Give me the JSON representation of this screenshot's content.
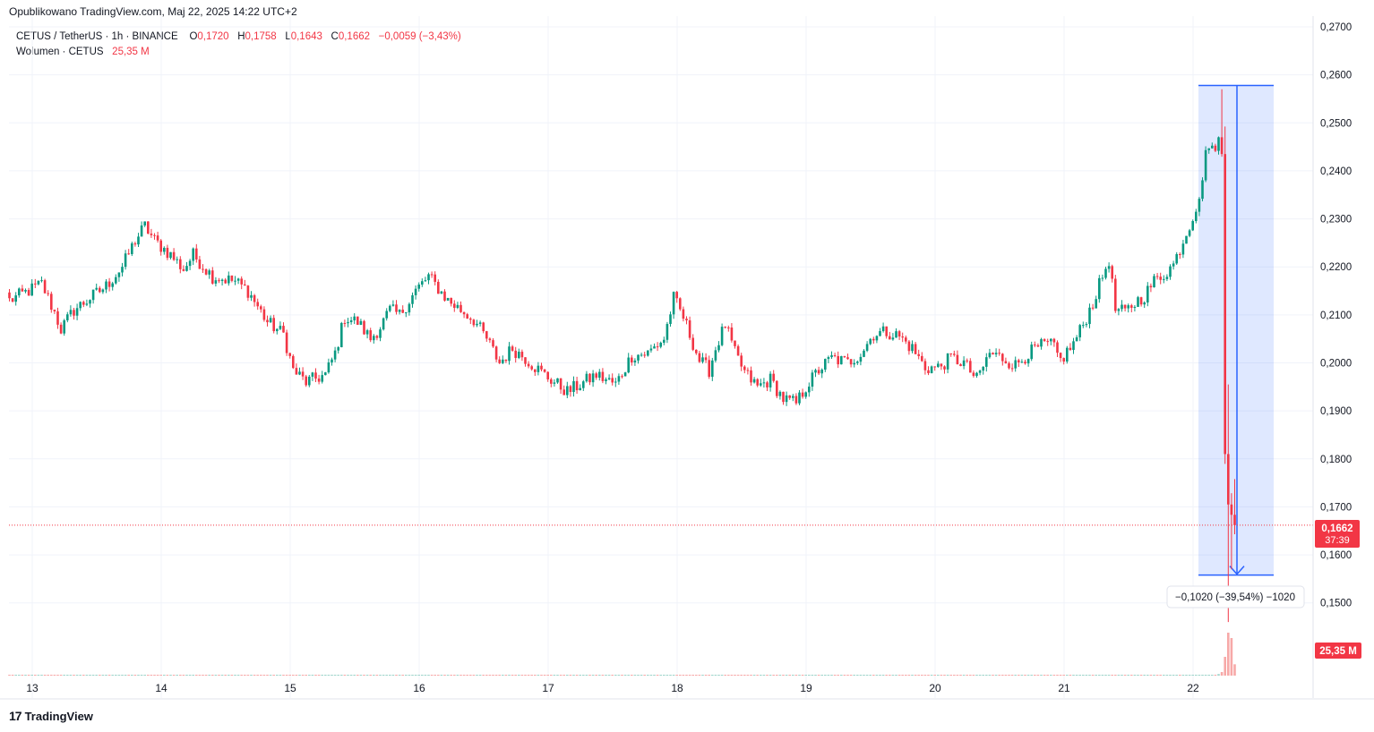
{
  "header": {
    "published": "Opublikowano TradingView.com, Maj 22, 2025 14:22 UTC+2"
  },
  "legend": {
    "symbol": "CETUS / TetherUS · 1h · BINANCE",
    "o_label": "O",
    "o_value": "0,1720",
    "h_label": "H",
    "h_value": "0,1758",
    "l_label": "L",
    "l_value": "0,1643",
    "c_label": "C",
    "c_value": "0,1662",
    "change": "−0,0059 (−3,43%)",
    "volume_label": "Wolumen · CETUS",
    "volume_value": "25,35 M"
  },
  "price_badge": {
    "price": "0,1662",
    "countdown": "37:39"
  },
  "volume_badge": "25,35 M",
  "measure_label": "−0,1020 (−39,54%) −1020",
  "brand": {
    "logo": "17",
    "name": "TradingView"
  },
  "colors": {
    "up": "#089981",
    "down": "#f23645",
    "volume_up": "#9fd4cb",
    "volume_down": "#f7a9a8",
    "measure_fill": "#2962ff",
    "grid": "#f0f3fa"
  },
  "chart_data": {
    "type": "candlestick",
    "x_axis": {
      "type": "date",
      "ticks": [
        "13",
        "14",
        "15",
        "16",
        "17",
        "18",
        "19",
        "20",
        "21",
        "22"
      ]
    },
    "y_axis": {
      "ylim": [
        0.141,
        0.27
      ],
      "ticks": [
        "0,1500",
        "0,1600",
        "0,1700",
        "0,1800",
        "0,1900",
        "0,2000",
        "0,2100",
        "0,2200",
        "0,2300",
        "0,2400",
        "0,2500",
        "0,2600",
        "0,2700"
      ],
      "tick_values": [
        0.15,
        0.16,
        0.17,
        0.18,
        0.19,
        0.2,
        0.21,
        0.22,
        0.23,
        0.24,
        0.25,
        0.26,
        0.27
      ]
    },
    "last_price": 0.1662,
    "measure": {
      "from": 0.2578,
      "to": 0.1558
    },
    "anchors": [
      [
        0,
        0.213
      ],
      [
        6,
        0.215
      ],
      [
        10,
        0.2165
      ],
      [
        14,
        0.2105
      ],
      [
        16,
        0.207
      ],
      [
        20,
        0.211
      ],
      [
        26,
        0.214
      ],
      [
        30,
        0.216
      ],
      [
        35,
        0.22
      ],
      [
        39,
        0.2255
      ],
      [
        42,
        0.2285
      ],
      [
        45,
        0.2255
      ],
      [
        50,
        0.2225
      ],
      [
        54,
        0.2195
      ],
      [
        57,
        0.2225
      ],
      [
        63,
        0.218
      ],
      [
        70,
        0.217
      ],
      [
        74,
        0.215
      ],
      [
        80,
        0.2085
      ],
      [
        85,
        0.206
      ],
      [
        88,
        0.1985
      ],
      [
        92,
        0.196
      ],
      [
        98,
        0.1975
      ],
      [
        101,
        0.202
      ],
      [
        104,
        0.2095
      ],
      [
        108,
        0.2085
      ],
      [
        112,
        0.205
      ],
      [
        115,
        0.2075
      ],
      [
        118,
        0.211
      ],
      [
        121,
        0.21
      ],
      [
        126,
        0.215
      ],
      [
        130,
        0.218
      ],
      [
        136,
        0.213
      ],
      [
        140,
        0.211
      ],
      [
        144,
        0.209
      ],
      [
        148,
        0.205
      ],
      [
        152,
        0.2
      ],
      [
        156,
        0.203
      ],
      [
        160,
        0.201
      ],
      [
        165,
        0.198
      ],
      [
        170,
        0.1955
      ],
      [
        173,
        0.194
      ],
      [
        177,
        0.1955
      ],
      [
        182,
        0.1975
      ],
      [
        188,
        0.1955
      ],
      [
        193,
        0.2015
      ],
      [
        198,
        0.202
      ],
      [
        203,
        0.205
      ],
      [
        206,
        0.2135
      ],
      [
        209,
        0.2095
      ],
      [
        214,
        0.2005
      ],
      [
        217,
        0.1985
      ],
      [
        219,
        0.203
      ],
      [
        222,
        0.208
      ],
      [
        225,
        0.202
      ],
      [
        228,
        0.198
      ],
      [
        232,
        0.195
      ],
      [
        236,
        0.1965
      ],
      [
        240,
        0.1925
      ],
      [
        244,
        0.1915
      ],
      [
        247,
        0.195
      ],
      [
        251,
        0.1985
      ],
      [
        255,
        0.201
      ],
      [
        260,
        0.2
      ],
      [
        264,
        0.202
      ],
      [
        268,
        0.206
      ],
      [
        272,
        0.2065
      ],
      [
        276,
        0.2055
      ],
      [
        280,
        0.203
      ],
      [
        284,
        0.199
      ],
      [
        288,
        0.199
      ],
      [
        292,
        0.201
      ],
      [
        296,
        0.2
      ],
      [
        300,
        0.1965
      ],
      [
        304,
        0.202
      ],
      [
        308,
        0.201
      ],
      [
        312,
        0.1995
      ],
      [
        316,
        0.202
      ],
      [
        320,
        0.2035
      ],
      [
        323,
        0.204
      ],
      [
        326,
        0.2005
      ],
      [
        330,
        0.204
      ],
      [
        333,
        0.208
      ],
      [
        336,
        0.2125
      ],
      [
        339,
        0.218
      ],
      [
        341,
        0.2215
      ],
      [
        343,
        0.211
      ],
      [
        346,
        0.2105
      ],
      [
        349,
        0.2125
      ],
      [
        352,
        0.214
      ],
      [
        355,
        0.217
      ],
      [
        358,
        0.2185
      ],
      [
        361,
        0.2205
      ],
      [
        364,
        0.2255
      ],
      [
        367,
        0.2305
      ],
      [
        370,
        0.237
      ],
      [
        371,
        0.2455
      ],
      [
        373,
        0.244
      ],
      [
        375,
        0.247
      ],
      [
        376,
        0.2435
      ],
      [
        377,
        0.181
      ],
      [
        378,
        0.1705
      ],
      [
        380,
        0.1662
      ]
    ],
    "volume": {
      "baseline": 0.5,
      "last_bars_millions": [
        3.5,
        8,
        42,
        96,
        84,
        25.35
      ]
    }
  }
}
